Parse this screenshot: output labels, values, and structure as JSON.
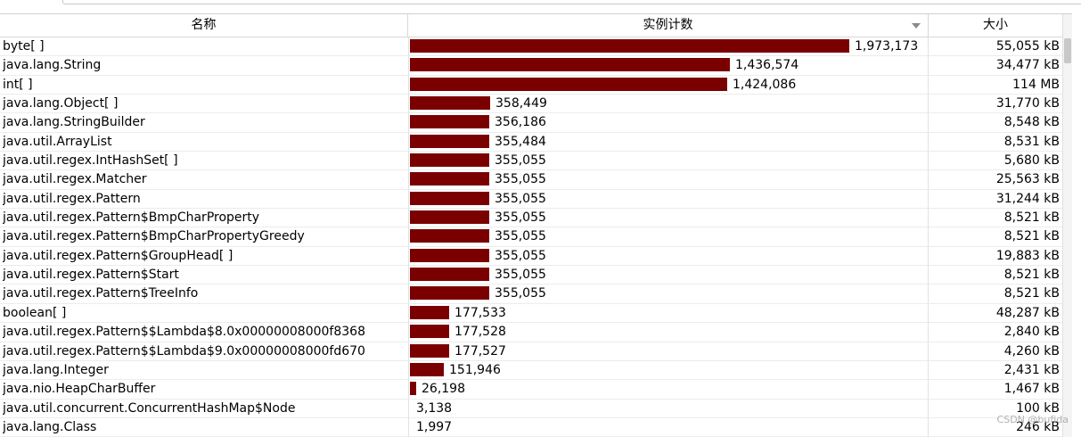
{
  "header": {
    "name": "名称",
    "count": "实例计数",
    "size": "大小"
  },
  "bar_color": "#7a0000",
  "max_count": 1973173,
  "rows": [
    {
      "name": "byte[ ]",
      "count": 1973173,
      "count_label": "1,973,173",
      "size": "55,055 kB"
    },
    {
      "name": "java.lang.String",
      "count": 1436574,
      "count_label": "1,436,574",
      "size": "34,477 kB"
    },
    {
      "name": "int[ ]",
      "count": 1424086,
      "count_label": "1,424,086",
      "size": "114 MB"
    },
    {
      "name": "java.lang.Object[ ]",
      "count": 358449,
      "count_label": "358,449",
      "size": "31,770 kB"
    },
    {
      "name": "java.lang.StringBuilder",
      "count": 356186,
      "count_label": "356,186",
      "size": "8,548 kB"
    },
    {
      "name": "java.util.ArrayList",
      "count": 355484,
      "count_label": "355,484",
      "size": "8,531 kB"
    },
    {
      "name": "java.util.regex.IntHashSet[ ]",
      "count": 355055,
      "count_label": "355,055",
      "size": "5,680 kB"
    },
    {
      "name": "java.util.regex.Matcher",
      "count": 355055,
      "count_label": "355,055",
      "size": "25,563 kB"
    },
    {
      "name": "java.util.regex.Pattern",
      "count": 355055,
      "count_label": "355,055",
      "size": "31,244 kB"
    },
    {
      "name": "java.util.regex.Pattern$BmpCharProperty",
      "count": 355055,
      "count_label": "355,055",
      "size": "8,521 kB"
    },
    {
      "name": "java.util.regex.Pattern$BmpCharPropertyGreedy",
      "count": 355055,
      "count_label": "355,055",
      "size": "8,521 kB"
    },
    {
      "name": "java.util.regex.Pattern$GroupHead[ ]",
      "count": 355055,
      "count_label": "355,055",
      "size": "19,883 kB"
    },
    {
      "name": "java.util.regex.Pattern$Start",
      "count": 355055,
      "count_label": "355,055",
      "size": "8,521 kB"
    },
    {
      "name": "java.util.regex.Pattern$TreeInfo",
      "count": 355055,
      "count_label": "355,055",
      "size": "8,521 kB"
    },
    {
      "name": "boolean[ ]",
      "count": 177533,
      "count_label": "177,533",
      "size": "48,287 kB"
    },
    {
      "name": "java.util.regex.Pattern$$Lambda$8.0x00000008000f8368",
      "count": 177528,
      "count_label": "177,528",
      "size": "2,840 kB"
    },
    {
      "name": "java.util.regex.Pattern$$Lambda$9.0x00000008000fd670",
      "count": 177527,
      "count_label": "177,527",
      "size": "4,260 kB"
    },
    {
      "name": "java.lang.Integer",
      "count": 151946,
      "count_label": "151,946",
      "size": "2,431 kB"
    },
    {
      "name": "java.nio.HeapCharBuffer",
      "count": 26198,
      "count_label": "26,198",
      "size": "1,467 kB"
    },
    {
      "name": "java.util.concurrent.ConcurrentHashMap$Node",
      "count": 3138,
      "count_label": "3,138",
      "size": "100 kB"
    },
    {
      "name": "java.lang.Class",
      "count": 1997,
      "count_label": "1,997",
      "size": "246 kB"
    }
  ],
  "watermark": "CSDN @bufida"
}
